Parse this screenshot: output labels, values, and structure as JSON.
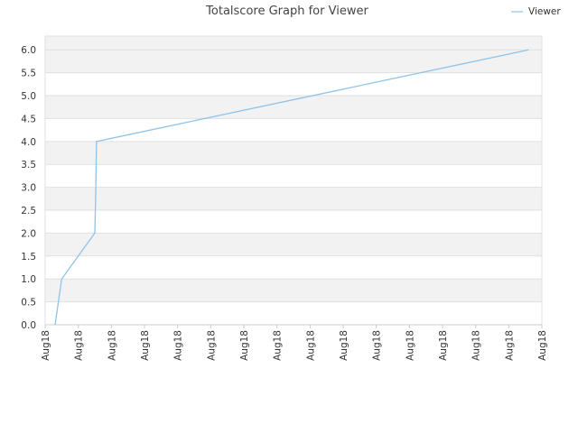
{
  "chart_data": {
    "type": "line",
    "title": "Totalscore Graph for Viewer",
    "xlabel": "",
    "ylabel": "",
    "x_tick_labels": [
      "Aug18",
      "Aug18",
      "Aug18",
      "Aug18",
      "Aug18",
      "Aug18",
      "Aug18",
      "Aug18",
      "Aug18",
      "Aug18",
      "Aug18",
      "Aug18",
      "Aug18",
      "Aug18",
      "Aug18",
      "Aug18"
    ],
    "y_ticks": [
      0.0,
      0.5,
      1.0,
      1.5,
      2.0,
      2.5,
      3.0,
      3.5,
      4.0,
      4.5,
      5.0,
      5.5,
      6.0
    ],
    "y_tick_labels": [
      "0.0",
      "0.5",
      "1.0",
      "1.5",
      "2.0",
      "2.5",
      "3.0",
      "3.5",
      "4.0",
      "4.5",
      "5.0",
      "5.5",
      "6.0"
    ],
    "ylim": [
      0,
      6.3
    ],
    "xlim": [
      0,
      15
    ],
    "grid": "horizontal alternating bands",
    "legend_position": "top-right",
    "series": [
      {
        "name": "Viewer",
        "color": "#8fc3ea",
        "x": [
          0.3,
          0.5,
          1.5,
          1.53,
          1.55,
          14.6
        ],
        "values": [
          0,
          1,
          2,
          3,
          4,
          6
        ]
      }
    ],
    "colors": {
      "band": "#f2f2f2",
      "gridline": "#e0e0e0",
      "axis": "#cccccc",
      "line": "#8fc3ea"
    }
  }
}
